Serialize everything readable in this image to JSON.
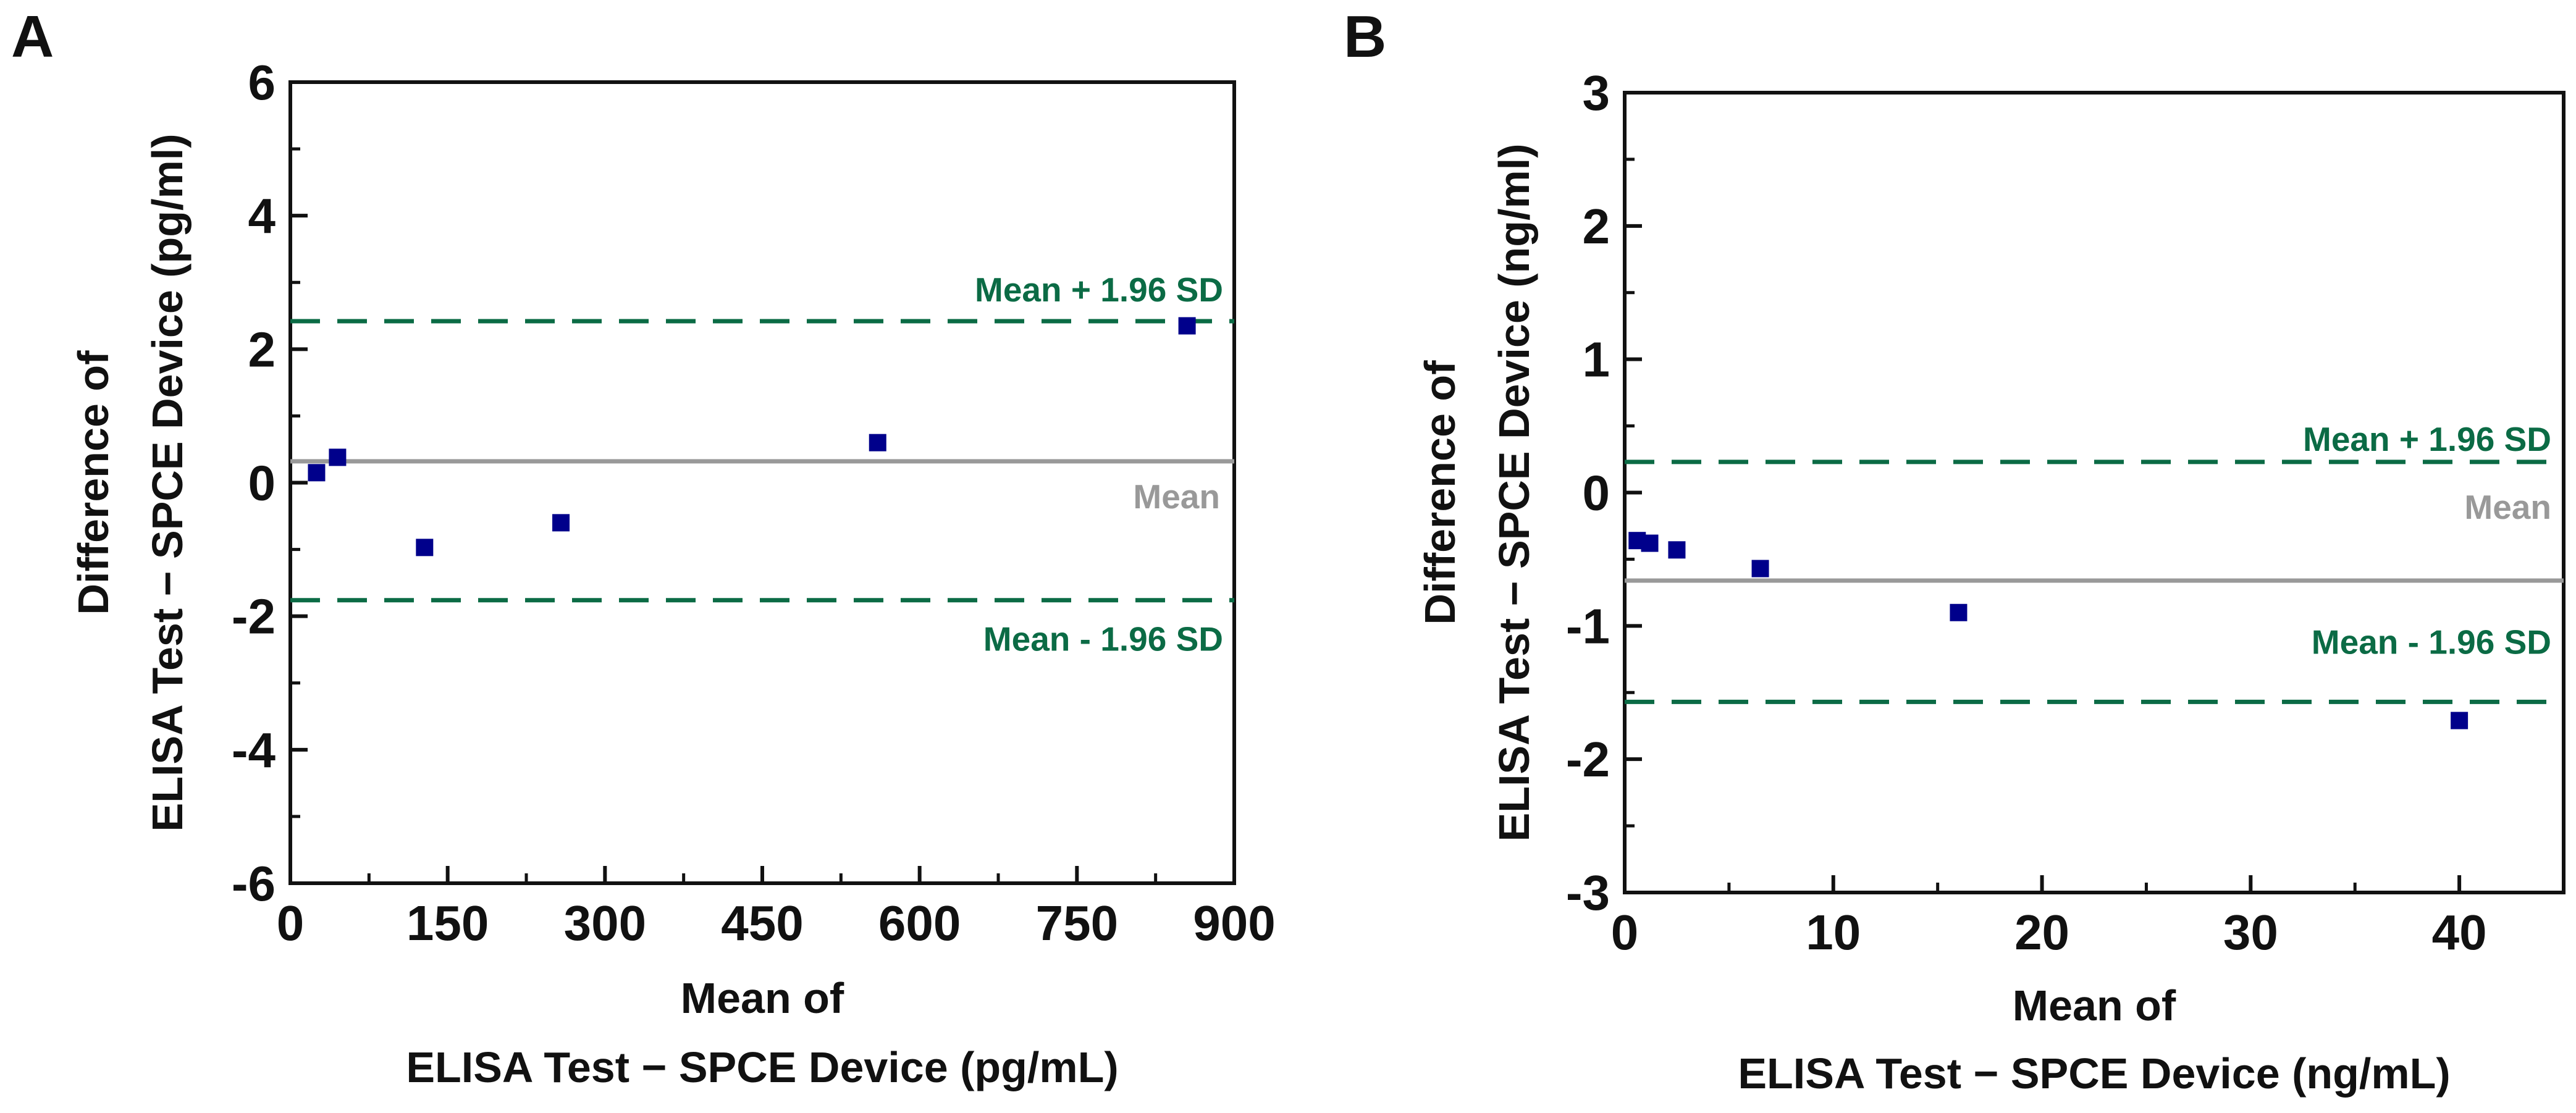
{
  "colors": {
    "marker": "#00008B",
    "mean": "#999999",
    "limits": "#0B6B45",
    "axis": "#111111"
  },
  "chart_data": [
    {
      "panel": "A",
      "type": "scatter",
      "title": "",
      "xlabel_line1": "Mean of",
      "xlabel_line2": "ELISA Test − SPCE Device (pg/mL)",
      "ylabel_line1": "Difference of",
      "ylabel_line2": "ELISA Test − SPCE Device (pg/ml)",
      "xlim": [
        0,
        900
      ],
      "ylim": [
        -6,
        6
      ],
      "xticks": [
        0,
        150,
        300,
        450,
        600,
        750,
        900
      ],
      "yticks": [
        -6,
        -4,
        -2,
        0,
        2,
        4,
        6
      ],
      "xtick_labels": [
        "0",
        "150",
        "300",
        "450",
        "600",
        "750",
        "900"
      ],
      "ytick_labels": [
        "-6",
        "-4",
        "-2",
        "0",
        "2",
        "4",
        "6"
      ],
      "x_minor_step": 75,
      "y_minor_step": 1,
      "points": [
        {
          "x": 25,
          "y": 0.15
        },
        {
          "x": 45,
          "y": 0.38
        },
        {
          "x": 128,
          "y": -0.97
        },
        {
          "x": 258,
          "y": -0.6
        },
        {
          "x": 560,
          "y": 0.6
        },
        {
          "x": 855,
          "y": 2.35
        }
      ],
      "mean": 0.32,
      "upper_loa": 2.42,
      "lower_loa": -1.76,
      "mean_label": "Mean",
      "upper_label": "Mean + 1.96 SD",
      "lower_label": "Mean - 1.96 SD"
    },
    {
      "panel": "B",
      "type": "scatter",
      "title": "",
      "xlabel_line1": "Mean of",
      "xlabel_line2": "ELISA Test − SPCE Device (ng/mL)",
      "ylabel_line1": "Difference of",
      "ylabel_line2": "ELISA Test − SPCE Device (ng/ml)",
      "xlim": [
        0,
        45
      ],
      "ylim": [
        -3,
        3
      ],
      "xticks": [
        0,
        10,
        20,
        30,
        40
      ],
      "yticks": [
        -3,
        -2,
        -1,
        0,
        1,
        2,
        3
      ],
      "xtick_labels": [
        "0",
        "10",
        "20",
        "30",
        "40"
      ],
      "ytick_labels": [
        "-3",
        "-2",
        "-1",
        "0",
        "1",
        "2",
        "3"
      ],
      "x_minor_step": 5,
      "y_minor_step": 0.5,
      "points": [
        {
          "x": 0.6,
          "y": -0.36
        },
        {
          "x": 1.2,
          "y": -0.38
        },
        {
          "x": 2.5,
          "y": -0.43
        },
        {
          "x": 6.5,
          "y": -0.57
        },
        {
          "x": 16.0,
          "y": -0.9
        },
        {
          "x": 40.0,
          "y": -1.71
        }
      ],
      "mean": -0.66,
      "upper_loa": 0.23,
      "lower_loa": -1.57,
      "mean_label": "Mean",
      "upper_label": "Mean + 1.96 SD",
      "lower_label": "Mean - 1.96 SD"
    }
  ]
}
